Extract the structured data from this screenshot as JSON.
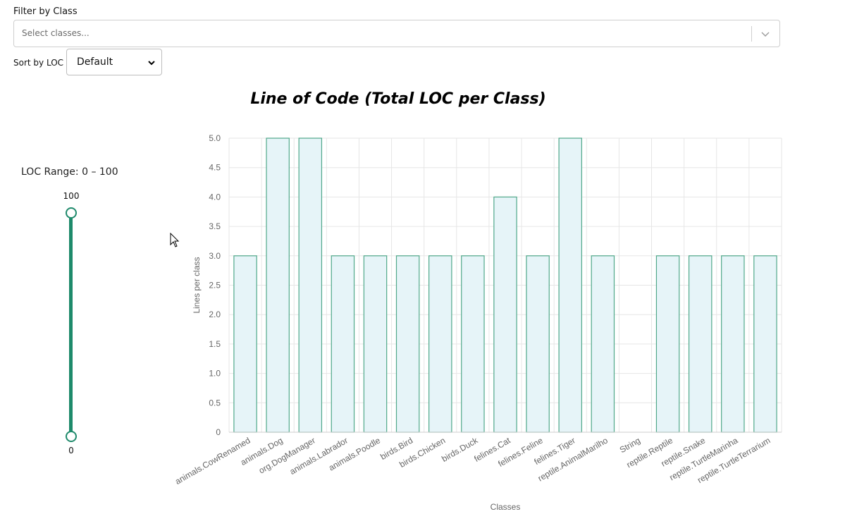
{
  "filter": {
    "label": "Filter by Class",
    "placeholder": "Select classes..."
  },
  "sort": {
    "label": "Sort by LOC",
    "selected": "Default"
  },
  "slider": {
    "label": "LOC Range: 0 – 100",
    "max_label": "100",
    "min_label": "0",
    "range": [
      0,
      100
    ]
  },
  "icons": {
    "filter_dropdown": "chevron-down-icon",
    "sort_dropdown": "chevron-down-icon",
    "cursor": "mouse-pointer-icon"
  },
  "colors": {
    "bar_fill": "#e6f4f8",
    "bar_stroke": "#4fa88a",
    "accent": "#1e8a6b"
  },
  "chart_data": {
    "type": "bar",
    "title": "Line of Code (Total LOC per Class)",
    "xlabel": "Classes",
    "ylabel": "Lines per class",
    "ylim": [
      0,
      5
    ],
    "yticks": [
      "0",
      "0.5",
      "1.0",
      "1.5",
      "2.0",
      "2.5",
      "3.0",
      "3.5",
      "4.0",
      "4.5",
      "5.0"
    ],
    "grid": true,
    "categories": [
      "animals.CowRenamed",
      "animals.Dog",
      "org.DogManager",
      "animals.Labrador",
      "animals.Poodle",
      "birds.Bird",
      "birds.Chicken",
      "birds.Duck",
      "felines.Cat",
      "felines.Feline",
      "felines.Tiger",
      "reptile.AnimalMarilho",
      "String",
      "reptile.Reptile",
      "reptile.Snake",
      "reptile.TurtleMarinha",
      "reptile.TurtleTerrarium"
    ],
    "values": [
      3,
      5,
      5,
      3,
      3,
      3,
      3,
      3,
      4,
      3,
      5,
      3,
      0,
      3,
      3,
      3,
      3
    ]
  }
}
